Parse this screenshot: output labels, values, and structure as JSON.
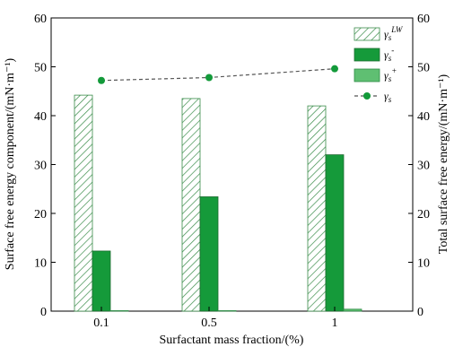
{
  "chart_data": {
    "type": "bar",
    "categories": [
      "0.1",
      "0.5",
      "1"
    ],
    "xlabel": "Surfactant mass fraction/(%)",
    "ylabel": "Surface free energy component/(mN·m⁻¹)",
    "y2label": "Total surface free energy/(mN·m⁻¹)",
    "ylim": [
      0,
      60
    ],
    "y2lim": [
      0,
      60
    ],
    "yticks": [
      "0",
      "10",
      "20",
      "30",
      "40",
      "50",
      "60"
    ],
    "y2ticks": [
      "0",
      "10",
      "20",
      "30",
      "40",
      "50",
      "60"
    ],
    "grid": false,
    "legend_position": "top-right",
    "series": [
      {
        "name": "γs^LW",
        "symbol": "γ",
        "sub": "s",
        "sup": "LW",
        "kind": "bar",
        "style": "hatched",
        "color": "#3a8c4a",
        "values": [
          44.2,
          43.5,
          42.0
        ]
      },
      {
        "name": "γs^-",
        "symbol": "γ",
        "sub": "s",
        "sup": "-",
        "kind": "bar",
        "style": "solid",
        "color": "#159a3a",
        "values": [
          12.3,
          23.4,
          32.0
        ]
      },
      {
        "name": "γs^+",
        "symbol": "γ",
        "sub": "s",
        "sup": "+",
        "kind": "bar",
        "style": "light",
        "color": "#5fbf72",
        "values": [
          0.1,
          0.1,
          0.4
        ]
      },
      {
        "name": "γs",
        "symbol": "γ",
        "sub": "s",
        "sup": "",
        "kind": "line",
        "style": "dashed",
        "color": "#139a3a",
        "axis": "right",
        "values": [
          47.2,
          47.8,
          49.6
        ]
      }
    ]
  }
}
